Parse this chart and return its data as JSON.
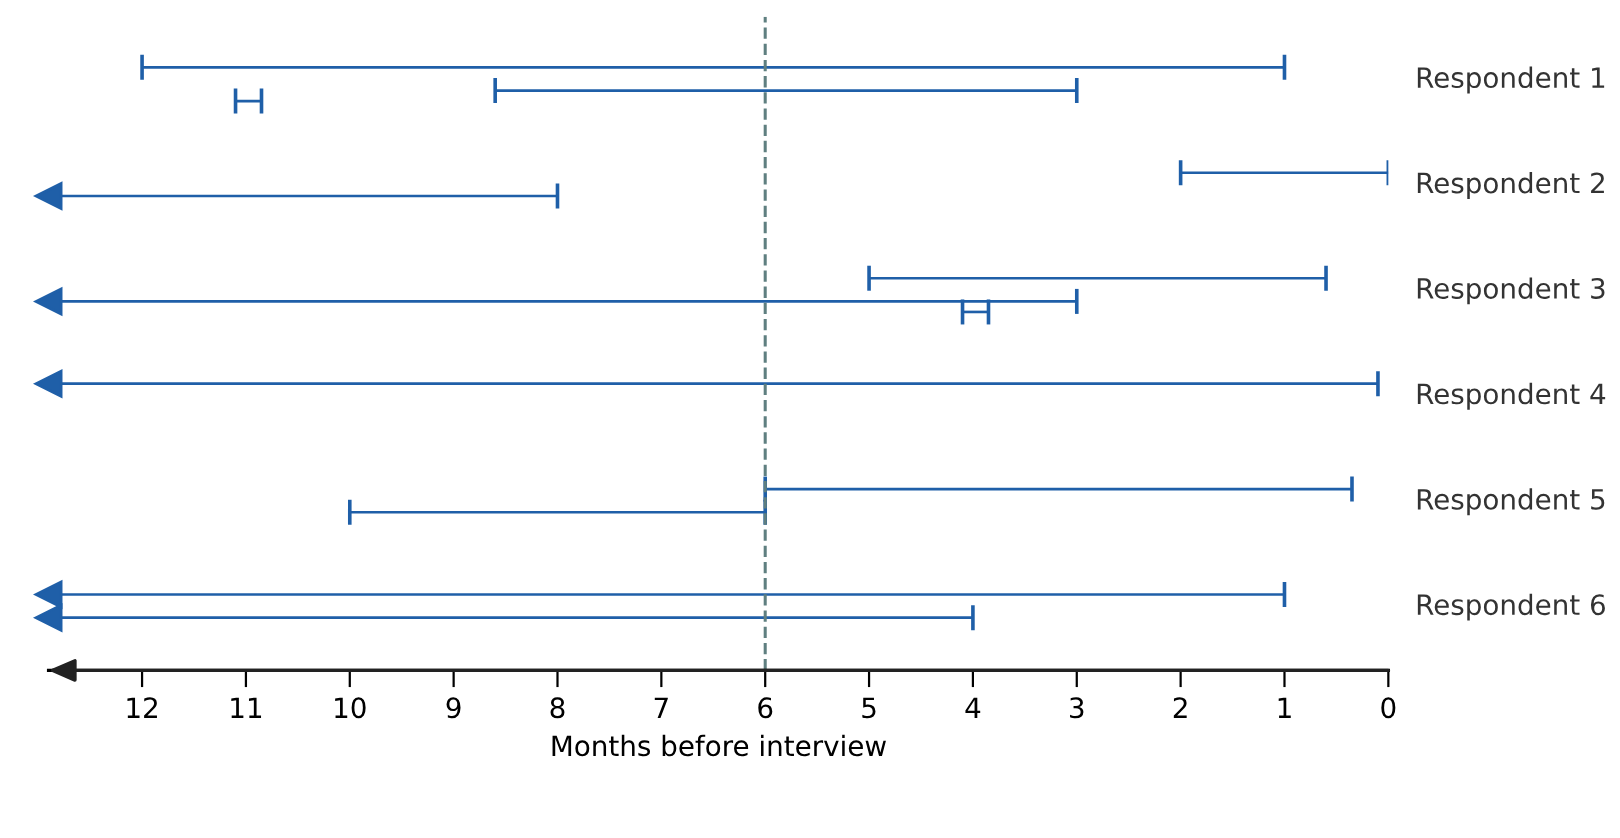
{
  "chart_data": {
    "type": "bar",
    "orientation": "horizontal",
    "xlabel": "Months before interview",
    "categories": [
      "Respondent 1",
      "Respondent 2",
      "Respondent 3",
      "Respondent 4",
      "Respondent 5",
      "Respondent 6"
    ],
    "series": [
      {
        "color": "#1f5fa8",
        "base": [
          12,
          2,
          5,
          12.9,
          6,
          12.9
        ],
        "values": [
          -11,
          -2,
          -4.4,
          -12.8,
          -5.65,
          -11.9
        ]
      },
      {
        "color": "#1f5fa8",
        "base": [
          8.6,
          12.9,
          12.9,
          null,
          10,
          12.9
        ],
        "values": [
          -5.6,
          -4.9,
          -9.9,
          null,
          -4,
          -8.9
        ]
      },
      {
        "color": "#1f5fa8",
        "base": [
          11.1,
          null,
          4.1,
          null,
          null,
          null
        ],
        "values": [
          -0.25,
          null,
          -0.25,
          null,
          null,
          null
        ]
      }
    ],
    "xlim": [
      12.9,
      0
    ],
    "xticks": [
      12,
      11,
      10,
      9,
      8,
      7,
      6,
      5,
      4,
      3,
      2,
      1,
      0
    ],
    "ref_lines": [
      {
        "axis": "x",
        "value": 6,
        "color": "#5f7f80",
        "line_style": "dashed"
      }
    ],
    "grid": false,
    "legend": false
  }
}
